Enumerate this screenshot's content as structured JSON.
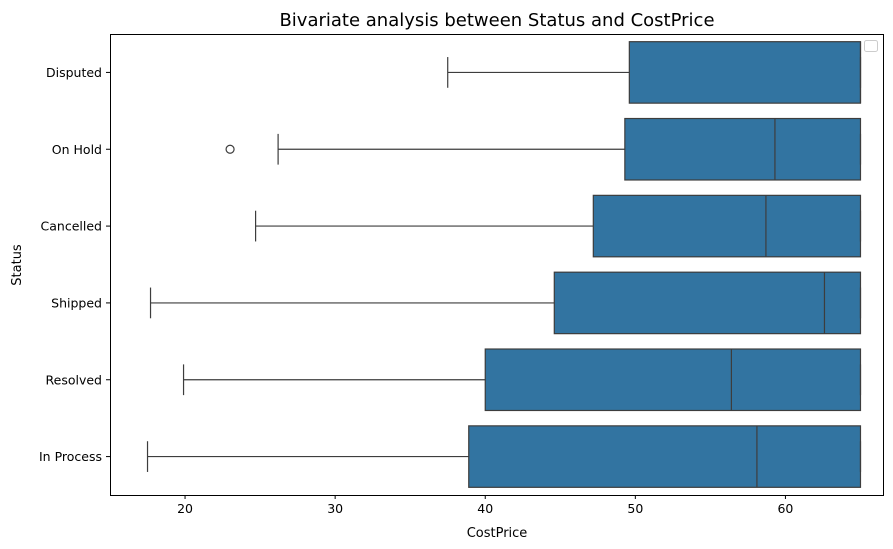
{
  "chart_data": {
    "type": "boxplot",
    "orientation": "horizontal",
    "title": "Bivariate analysis between Status and CostPrice",
    "xlabel": "CostPrice",
    "ylabel": "Status",
    "xlim": [
      15,
      66.5
    ],
    "xticks": [
      "20",
      "30",
      "40",
      "50",
      "60"
    ],
    "legend": "top-right",
    "box_color": "#3274a1",
    "categories": [
      "Disputed",
      "On Hold",
      "Cancelled",
      "Shipped",
      "Resolved",
      "In Process"
    ],
    "boxes": [
      {
        "category": "Disputed",
        "whisker_low": 37.5,
        "q1": 49.6,
        "median": 65.0,
        "q3": 65.0,
        "whisker_high": 65.0,
        "outliers": []
      },
      {
        "category": "On Hold",
        "whisker_low": 26.2,
        "q1": 49.3,
        "median": 59.3,
        "q3": 65.0,
        "whisker_high": 65.0,
        "outliers": [
          23.0
        ]
      },
      {
        "category": "Cancelled",
        "whisker_low": 24.7,
        "q1": 47.2,
        "median": 58.7,
        "q3": 65.0,
        "whisker_high": 65.0,
        "outliers": []
      },
      {
        "category": "Shipped",
        "whisker_low": 17.7,
        "q1": 44.6,
        "median": 62.6,
        "q3": 65.0,
        "whisker_high": 65.0,
        "outliers": []
      },
      {
        "category": "Resolved",
        "whisker_low": 19.9,
        "q1": 40.0,
        "median": 56.4,
        "q3": 65.0,
        "whisker_high": 65.0,
        "outliers": []
      },
      {
        "category": "In Process",
        "whisker_low": 17.5,
        "q1": 38.9,
        "median": 58.1,
        "q3": 65.0,
        "whisker_high": 65.0,
        "outliers": []
      }
    ]
  }
}
